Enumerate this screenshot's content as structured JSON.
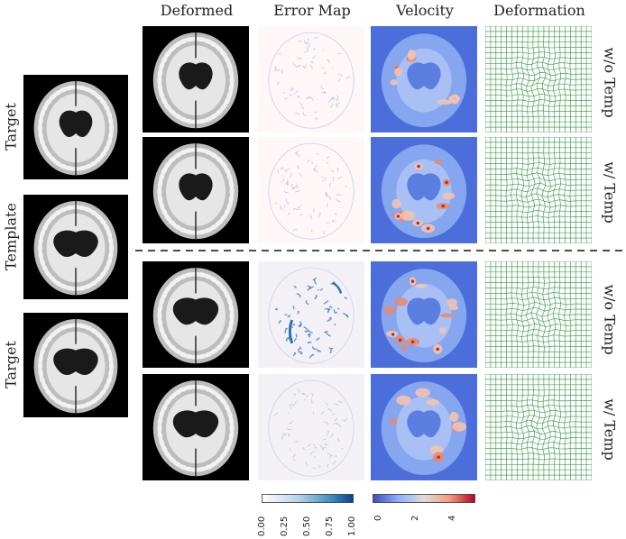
{
  "figure": {
    "column_titles": [
      "Deformed",
      "Error Map",
      "Velocity",
      "Deformation"
    ],
    "left_labels": [
      "Target",
      "Template",
      "Target"
    ],
    "row_labels": [
      "w/o Temp",
      "w/ Temp",
      "w/o Temp",
      "w/ Temp"
    ],
    "error_colorbar": {
      "ticks": [
        "0.00",
        "0.25",
        "0.50",
        "0.75",
        "1.00"
      ],
      "colors": [
        "#ffffff",
        "#1f5fa8"
      ]
    },
    "velocity_colorbar": {
      "ticks": [
        "0",
        "2",
        "4"
      ],
      "colors": [
        "#3b4cc0",
        "#f2f2f2",
        "#b40426"
      ]
    }
  }
}
